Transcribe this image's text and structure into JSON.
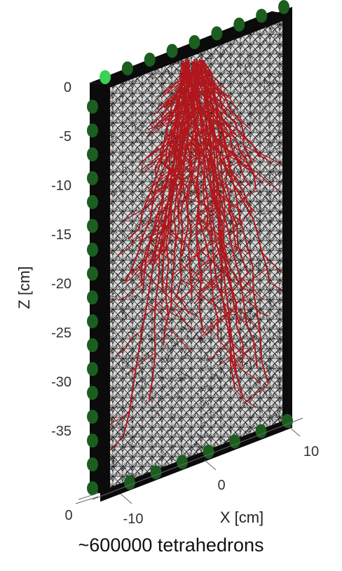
{
  "figure": {
    "caption": "~600000 tetrahedrons",
    "z_axis": {
      "label": "Z [cm]",
      "ticks": [
        "0",
        "-5",
        "-10",
        "-15",
        "-20",
        "-25",
        "-30",
        "-35"
      ]
    },
    "x_axis": {
      "label": "X [cm]",
      "ticks": [
        "-10",
        "0",
        "10"
      ]
    },
    "y_axis": {
      "ticks": [
        "0"
      ]
    },
    "colors": {
      "mesh_fill": "#d8d8d8",
      "mesh_lines": "#1a1a1a",
      "frame": "#0b0b0b",
      "boundary_nodes": "#1b5e20",
      "highlight_node": "#39d353",
      "roots": "#b0171c"
    }
  }
}
